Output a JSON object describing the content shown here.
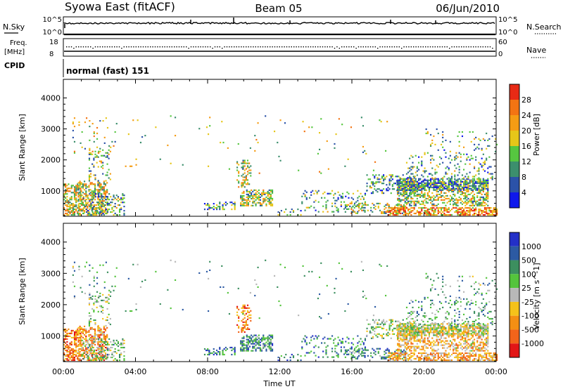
{
  "header": {
    "title_left": "Syowa East (fitACF)",
    "title_center": "Beam 05",
    "title_right": "06/Jun/2010"
  },
  "status_panels": {
    "nsky_label": "N.Sky",
    "nsearch_label": "N.Search",
    "noise_ticks": [
      "10^5",
      "10^0"
    ],
    "freq_label": "Freq.",
    "freq_unit": "[MHz]",
    "freq_ticks": [
      "18",
      "8"
    ],
    "nave_label": "Nave",
    "nave_ticks": [
      "60",
      "0"
    ],
    "cpid_label": "CPID",
    "cpid_text": "normal (fast) 151"
  },
  "chart_data": [
    {
      "type": "heatmap",
      "name": "power",
      "ylabel": "Slant Range [km]",
      "xlabel": "",
      "x_range_hours": [
        0,
        24
      ],
      "ylim": [
        180,
        4600
      ],
      "y_ticks": [
        1000,
        2000,
        3000,
        4000
      ],
      "colorbar": {
        "label": "Power [dB]",
        "ticks": [
          "4",
          "8",
          "12",
          "16",
          "20",
          "24",
          "28"
        ],
        "colors": [
          "#0f18ec",
          "#2b52a8",
          "#3c8f6d",
          "#56c640",
          "#e6c619",
          "#f59c14",
          "#f37413",
          "#e82a15"
        ]
      }
    },
    {
      "type": "heatmap",
      "name": "velocity",
      "ylabel": "Slant Range [km]",
      "xlabel": "Time UT",
      "x_range_hours": [
        0,
        24
      ],
      "x_ticks": [
        "00:00",
        "04:00",
        "08:00",
        "12:00",
        "16:00",
        "20:00",
        "00:00"
      ],
      "ylim": [
        180,
        4600
      ],
      "y_ticks": [
        1000,
        2000,
        3000,
        4000
      ],
      "colorbar": {
        "label": "Velocity [m s^-1]",
        "ticks": [
          "1000",
          "500",
          "100",
          "25",
          "-25",
          "-100",
          "-500",
          "-1000"
        ],
        "colors": [
          "#2330c8",
          "#2c5aa3",
          "#3c8f5f",
          "#54c43c",
          "#b8b8b8",
          "#f5c21a",
          "#f48f13",
          "#f2641a",
          "#e21616"
        ]
      }
    }
  ]
}
